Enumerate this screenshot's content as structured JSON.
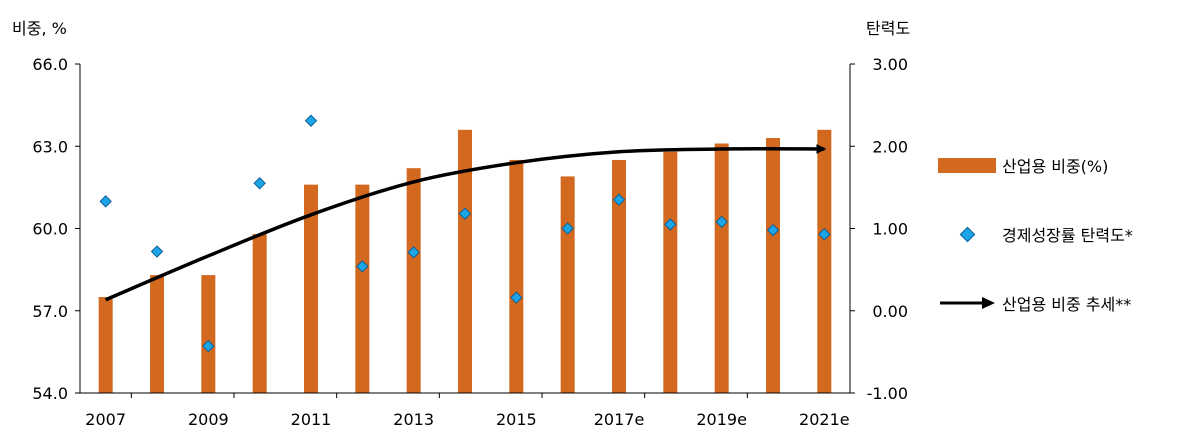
{
  "chart_data": {
    "type": "bar",
    "left_axis_label": "비중, %",
    "right_axis_label": "탄력도",
    "x": [
      "2007",
      "2008",
      "2009",
      "2010",
      "2011",
      "2012",
      "2013",
      "2014",
      "2015",
      "2016",
      "2017e",
      "2018",
      "2019e",
      "2020",
      "2021e"
    ],
    "x_tick_labels": [
      "2007",
      "2009",
      "2011",
      "2013",
      "2015",
      "2017e",
      "2019e",
      "2021e"
    ],
    "left_axis": {
      "ylim": [
        54.0,
        66.0
      ],
      "ticks": [
        "54.0",
        "57.0",
        "60.0",
        "63.0",
        "66.0"
      ]
    },
    "right_axis": {
      "ylim": [
        -1.0,
        3.0
      ],
      "ticks": [
        "-1.00",
        "0.00",
        "1.00",
        "2.00",
        "3.00"
      ]
    },
    "series": [
      {
        "name": "산업용 비중(%)",
        "type": "bar",
        "axis": "left",
        "color": "#D2691E",
        "values": [
          57.5,
          58.3,
          58.3,
          59.8,
          61.6,
          61.6,
          62.2,
          63.6,
          62.5,
          61.9,
          62.5,
          62.8,
          63.1,
          63.3,
          63.6
        ]
      },
      {
        "name": "경제성장률 탄력도*",
        "type": "scatter",
        "axis": "right",
        "marker": "diamond",
        "color": "#1CA6E8",
        "values": [
          1.33,
          0.72,
          -0.43,
          1.55,
          2.31,
          0.54,
          0.71,
          1.18,
          0.16,
          1.0,
          1.35,
          1.05,
          1.08,
          0.98,
          0.93
        ]
      },
      {
        "name": "산업용 비중 추세**",
        "type": "trend-arrow",
        "axis": "left",
        "color": "#000000",
        "x": [
          2007,
          2009,
          2011,
          2013,
          2015,
          2017,
          2019,
          2021
        ],
        "values": [
          57.4,
          59.0,
          60.5,
          61.7,
          62.4,
          62.8,
          62.9,
          62.9
        ]
      }
    ],
    "grid": false,
    "legend_position": "right"
  }
}
